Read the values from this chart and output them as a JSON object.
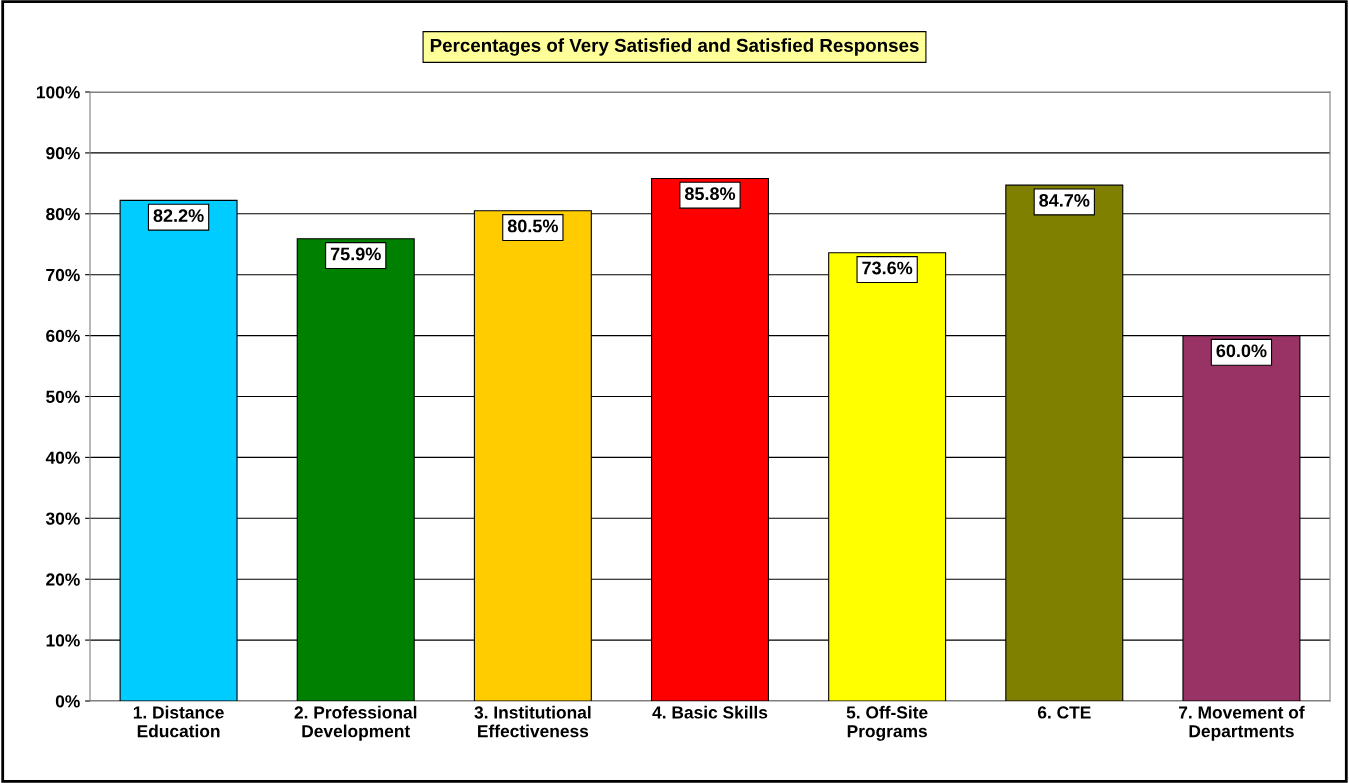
{
  "chart_data": {
    "type": "bar",
    "title": "Percentages of Very Satisfied and Satisfied Responses",
    "categories": [
      "1. Distance\nEducation",
      "2. Professional\nDevelopment",
      "3. Institutional\nEffectiveness",
      "4. Basic Skills",
      "5. Off-Site\nPrograms",
      "6. CTE",
      "7. Movement of\nDepartments"
    ],
    "values": [
      82.2,
      75.9,
      80.5,
      85.8,
      73.6,
      84.7,
      60.0
    ],
    "value_labels": [
      "82.2%",
      "75.9%",
      "80.5%",
      "85.8%",
      "73.6%",
      "84.7%",
      "60.0%"
    ],
    "colors": [
      "#00ccff",
      "#008000",
      "#ffcc00",
      "#ff0000",
      "#ffff00",
      "#808000",
      "#993366"
    ],
    "ylim": [
      0,
      100
    ],
    "yticks": [
      {
        "value": 0,
        "label": "0%"
      },
      {
        "value": 10,
        "label": "10%"
      },
      {
        "value": 20,
        "label": "20%"
      },
      {
        "value": 30,
        "label": "30%"
      },
      {
        "value": 40,
        "label": "40%"
      },
      {
        "value": 50,
        "label": "50%"
      },
      {
        "value": 60,
        "label": "60%"
      },
      {
        "value": 70,
        "label": "70%"
      },
      {
        "value": 80,
        "label": "80%"
      },
      {
        "value": 90,
        "label": "90%"
      },
      {
        "value": 100,
        "label": "100%"
      }
    ],
    "grid": "y"
  }
}
